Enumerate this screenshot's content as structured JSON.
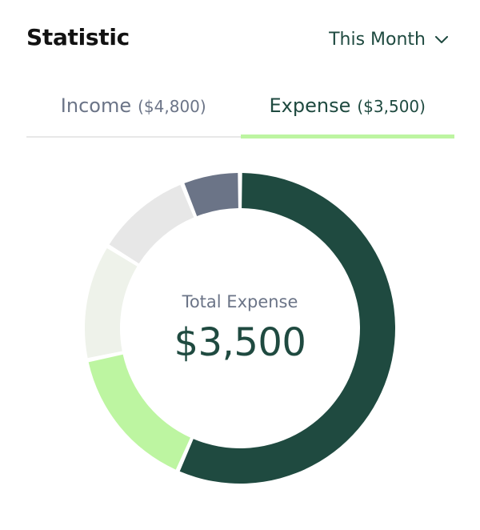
{
  "header": {
    "title": "Statistic",
    "period_label": "This Month"
  },
  "tabs": [
    {
      "label": "Income",
      "amount": "($4,800)",
      "active": false
    },
    {
      "label": "Expense",
      "amount": "($3,500)",
      "active": true
    }
  ],
  "summary": {
    "label": "Total Expense",
    "value": "$3,500"
  },
  "colors": {
    "accent_dark": "#1f4a40",
    "accent_light": "#bdf5a1",
    "muted_text": "#6b7487"
  },
  "chart_data": {
    "type": "pie",
    "donut": true,
    "total": 3500,
    "slices": [
      {
        "value": 56,
        "color": "#1f4a40"
      },
      {
        "value": 15,
        "color": "#bdf5a1"
      },
      {
        "value": 12,
        "color": "#eef2ea"
      },
      {
        "value": 10,
        "color": "#e7e7e7"
      },
      {
        "value": 6,
        "color": "#6b7487"
      }
    ]
  }
}
